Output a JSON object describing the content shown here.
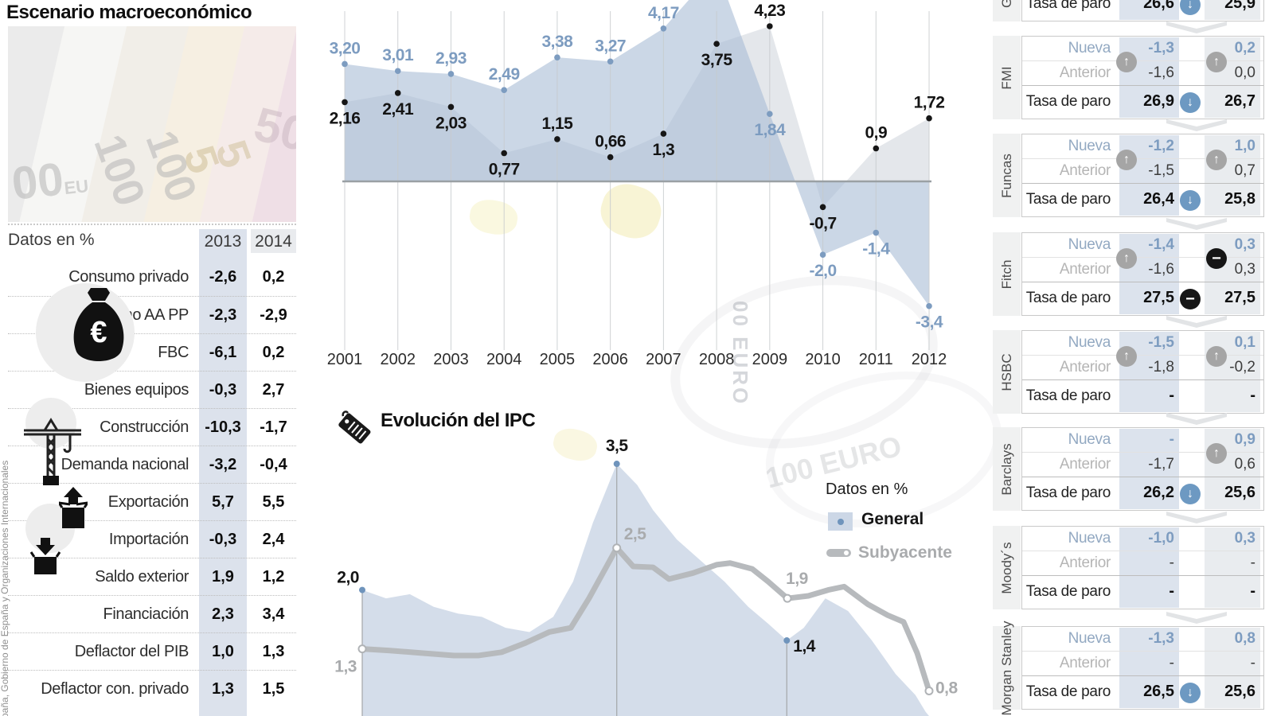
{
  "left_panel": {
    "title": "Escenario macroeconómico",
    "datos_label": "Datos en %",
    "col_2013": "2013",
    "col_2014": "2014",
    "rows": [
      {
        "label": "Consumo privado",
        "v2013": "-2,6",
        "v2014": "0,2"
      },
      {
        "label": "Consumo AA PP",
        "v2013": "-2,3",
        "v2014": "-2,9"
      },
      {
        "label": "FBC",
        "v2013": "-6,1",
        "v2014": "0,2"
      },
      {
        "label": "Bienes equipos",
        "v2013": "-0,3",
        "v2014": "2,7"
      },
      {
        "label": "Construcción",
        "v2013": "-10,3",
        "v2014": "-1,7"
      },
      {
        "label": "Demanda nacional",
        "v2013": "-3,2",
        "v2014": "-0,4"
      },
      {
        "label": "Exportación",
        "v2013": "5,7",
        "v2014": "5,5"
      },
      {
        "label": "Importación",
        "v2013": "-0,3",
        "v2014": "2,4"
      },
      {
        "label": "Saldo exterior",
        "v2013": "1,9",
        "v2014": "1,2"
      },
      {
        "label": "Financiación",
        "v2013": "2,3",
        "v2014": "3,4"
      },
      {
        "label": "Deflactor del PIB",
        "v2013": "1,0",
        "v2014": "1,3"
      },
      {
        "label": "Deflactor con. privado",
        "v2013": "1,3",
        "v2014": "1,5"
      }
    ],
    "icons": [
      "money-bag-icon",
      "construction-crane-icon",
      "export-box-icon",
      "import-box-icon"
    ],
    "source_vertical": "paña, Gobierno de España y Organizaciones Internacionales",
    "photo_numbers": [
      "00EU",
      "100",
      "100",
      "5",
      "5",
      "50"
    ]
  },
  "ipc": {
    "title": "Evolución del IPC",
    "note": "Datos en %",
    "legend_general": "General",
    "legend_subyacente": "Subyacente",
    "icon": "price-tag-icon"
  },
  "colors": {
    "blue": "#7d9cc0",
    "blue_circle": "#6d99c2",
    "gray_circle": "#a5a5a5",
    "black": "#141414",
    "area_blue": "#a9bdd6",
    "area_gray": "#e2e5e9",
    "line_gray": "#b7babd",
    "band_2013": "#dce3ed",
    "band_2014": "#e9ecef"
  },
  "right_panel": {
    "row_labels": {
      "nueva": "Nueva",
      "anterior": "Anterior",
      "paro": "Tasa de paro"
    },
    "institutions": [
      {
        "name": "Gobierno",
        "clipped": true,
        "nueva13": null,
        "nueva14": null,
        "ant13": null,
        "ant14": null,
        "arrow_left": null,
        "arrow_right": null,
        "paro13": "26,6",
        "paro14": "25,9",
        "paro_icon": "down"
      },
      {
        "name": "FMI",
        "nueva13": "-1,3",
        "nueva14": "0,2",
        "ant13": "-1,6",
        "ant14": "0,0",
        "arrow_left": "up",
        "arrow_right": "up",
        "paro13": "26,9",
        "paro14": "26,7",
        "paro_icon": "down"
      },
      {
        "name": "Funcas",
        "nueva13": "-1,2",
        "nueva14": "1,0",
        "ant13": "-1,5",
        "ant14": "0,7",
        "arrow_left": "up",
        "arrow_right": "up",
        "paro13": "26,4",
        "paro14": "25,8",
        "paro_icon": "down"
      },
      {
        "name": "Fitch",
        "nueva13": "-1,4",
        "nueva14": "0,3",
        "ant13": "-1,6",
        "ant14": "0,3",
        "arrow_left": "up",
        "arrow_right": "equal",
        "paro13": "27,5",
        "paro14": "27,5",
        "paro_icon": "equal"
      },
      {
        "name": "HSBC",
        "nueva13": "-1,5",
        "nueva14": "0,1",
        "ant13": "-1,8",
        "ant14": "-0,2",
        "arrow_left": "up",
        "arrow_right": "up",
        "paro13": "-",
        "paro14": "-",
        "paro_icon": null
      },
      {
        "name": "Barclays",
        "nueva13": "-",
        "nueva14": "0,9",
        "ant13": "-1,7",
        "ant14": "0,6",
        "arrow_left": null,
        "arrow_right": "up",
        "paro13": "26,2",
        "paro14": "25,6",
        "paro_icon": "down"
      },
      {
        "name": "Moody´s",
        "nueva13": "-1,0",
        "nueva14": "0,3",
        "ant13": "-",
        "ant14": "-",
        "arrow_left": null,
        "arrow_right": null,
        "paro13": "-",
        "paro14": "-",
        "paro_icon": null
      },
      {
        "name": "Morgan Stanley",
        "nueva13": "-1,3",
        "nueva14": "0,8",
        "ant13": "-",
        "ant14": "-",
        "arrow_left": null,
        "arrow_right": null,
        "paro13": "26,5",
        "paro14": "25,6",
        "paro_icon": "down"
      }
    ]
  },
  "chart_data": [
    {
      "type": "area",
      "title": "",
      "note": "chart top is clipped in source image; 2008 value of blue series not visible",
      "x_labels": [
        "2001",
        "2002",
        "2003",
        "2004",
        "2005",
        "2006",
        "2007",
        "2008",
        "2009",
        "2010",
        "2011",
        "2012"
      ],
      "baseline": 0,
      "grid": "vertical",
      "series": [
        {
          "name": "serie-azul",
          "color": "#7d9cc0",
          "points": [
            {
              "label": "3,20",
              "v": 3.2,
              "lp": "a"
            },
            {
              "label": "3,01",
              "v": 3.01,
              "lp": "a"
            },
            {
              "label": "2,93",
              "v": 2.93,
              "lp": "a"
            },
            {
              "label": "2,49",
              "v": 2.49,
              "lp": "a"
            },
            {
              "label": "3,38",
              "v": 3.38,
              "lp": "a"
            },
            {
              "label": "3,27",
              "v": 3.27,
              "lp": "a"
            },
            {
              "label": "4,17",
              "v": 4.17,
              "lp": "a"
            },
            {
              "label": null,
              "v": null,
              "lp": null
            },
            {
              "label": "1,84",
              "v": 1.84,
              "lp": "b"
            },
            {
              "label": "-2,0",
              "v": -2.0,
              "lp": "b"
            },
            {
              "label": "-1,4",
              "v": -1.4,
              "lp": "b"
            },
            {
              "label": "-3,4",
              "v": -3.4,
              "lp": "b"
            }
          ]
        },
        {
          "name": "serie-negra",
          "color": "#141414",
          "points": [
            {
              "label": "2,16",
              "v": 2.16,
              "lp": "b"
            },
            {
              "label": "2,41",
              "v": 2.41,
              "lp": "b"
            },
            {
              "label": "2,03",
              "v": 2.03,
              "lp": "b"
            },
            {
              "label": "0,77",
              "v": 0.77,
              "lp": "b"
            },
            {
              "label": "1,15",
              "v": 1.15,
              "lp": "a"
            },
            {
              "label": "0,66",
              "v": 0.66,
              "lp": "a"
            },
            {
              "label": "1,3",
              "v": 1.3,
              "lp": "b"
            },
            {
              "label": "3,75",
              "v": 3.75,
              "lp": "b"
            },
            {
              "label": "4,23",
              "v": 4.23,
              "lp": "a"
            },
            {
              "label": "-0,7",
              "v": -0.7,
              "lp": "b"
            },
            {
              "label": "0,9",
              "v": 0.9,
              "lp": "a"
            },
            {
              "label": "1,72",
              "v": 1.72,
              "lp": "a"
            }
          ]
        }
      ]
    },
    {
      "type": "area+line",
      "title": "Evolución del IPC",
      "note": "Datos en %",
      "legend": [
        {
          "name": "General",
          "style": "blue-area"
        },
        {
          "name": "Subyacente",
          "style": "gray-line"
        }
      ],
      "series": [
        {
          "name": "General",
          "marked": [
            {
              "x": 0,
              "v": 2.0,
              "label": "2,0"
            },
            {
              "x": 44.9,
              "v": 3.5,
              "label": "3,5"
            },
            {
              "x": 74.9,
              "v": 1.4,
              "label": "1,4"
            }
          ],
          "path": [
            [
              0,
              2.0
            ],
            [
              4.2,
              1.9
            ],
            [
              8.4,
              1.95
            ],
            [
              12.6,
              1.8
            ],
            [
              16.9,
              1.72
            ],
            [
              21.1,
              1.68
            ],
            [
              25.3,
              1.55
            ],
            [
              29.5,
              1.5
            ],
            [
              33.7,
              1.68
            ],
            [
              37.2,
              2.1
            ],
            [
              40.7,
              2.8
            ],
            [
              44.9,
              3.5
            ],
            [
              48.5,
              3.25
            ],
            [
              51.3,
              2.95
            ],
            [
              55.5,
              2.6
            ],
            [
              59.7,
              2.35
            ],
            [
              63.9,
              2.1
            ],
            [
              68.1,
              1.8
            ],
            [
              71.6,
              1.6
            ],
            [
              74.9,
              1.4
            ],
            [
              77.9,
              1.55
            ],
            [
              81.7,
              1.9
            ],
            [
              85.7,
              1.75
            ],
            [
              89.9,
              1.4
            ],
            [
              94.1,
              1.0
            ],
            [
              97.6,
              0.75
            ],
            [
              99.4,
              0.55
            ]
          ]
        },
        {
          "name": "Subyacente",
          "marked": [
            {
              "x": 0,
              "v": 1.3,
              "label": "1,3"
            },
            {
              "x": 44.9,
              "v": 2.5,
              "label": "2,5"
            },
            {
              "x": 75.0,
              "v": 1.9,
              "label": "1,9"
            },
            {
              "x": 100,
              "v": 0.8,
              "label": "0,8"
            }
          ],
          "path": [
            [
              0,
              1.3
            ],
            [
              4.9,
              1.28
            ],
            [
              10.5,
              1.25
            ],
            [
              16.2,
              1.22
            ],
            [
              20.4,
              1.22
            ],
            [
              24.6,
              1.26
            ],
            [
              28.8,
              1.37
            ],
            [
              33,
              1.5
            ],
            [
              36.8,
              1.55
            ],
            [
              40,
              1.9
            ],
            [
              44.9,
              2.5
            ],
            [
              47.8,
              2.28
            ],
            [
              51.3,
              2.27
            ],
            [
              54.1,
              2.13
            ],
            [
              58.3,
              2.2
            ],
            [
              62.5,
              2.3
            ],
            [
              64.9,
              2.32
            ],
            [
              68.8,
              2.25
            ],
            [
              71.6,
              2.1
            ],
            [
              75,
              1.9
            ],
            [
              78.7,
              1.93
            ],
            [
              82.2,
              2.0
            ],
            [
              85,
              2.04
            ],
            [
              89.2,
              1.83
            ],
            [
              92.7,
              1.7
            ],
            [
              95.5,
              1.62
            ],
            [
              97.9,
              1.25
            ],
            [
              100,
              0.8
            ]
          ]
        }
      ]
    }
  ]
}
